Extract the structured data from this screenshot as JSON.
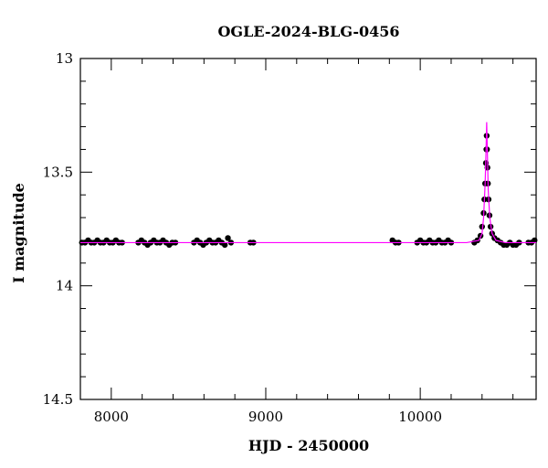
{
  "chart_data": {
    "type": "scatter",
    "title": "OGLE-2024-BLG-0456",
    "xlabel": "HJD - 2450000",
    "ylabel": "I magnitude",
    "xlim": [
      7800,
      10750
    ],
    "ylim": [
      14.5,
      13.0
    ],
    "y_inverted": true,
    "grid": false,
    "x_ticks": [
      8000,
      9000,
      10000
    ],
    "x_tick_labels": [
      "8000",
      "9000",
      "10000"
    ],
    "y_ticks": [
      13.0,
      13.5,
      14.0,
      14.5
    ],
    "y_tick_labels": [
      "13",
      "13.5",
      "14",
      "14.5"
    ],
    "series": [
      {
        "kind": "points",
        "color": "#000000",
        "points": [
          [
            7810,
            13.81
          ],
          [
            7830,
            13.81
          ],
          [
            7850,
            13.8
          ],
          [
            7870,
            13.81
          ],
          [
            7890,
            13.81
          ],
          [
            7910,
            13.8
          ],
          [
            7930,
            13.81
          ],
          [
            7950,
            13.81
          ],
          [
            7970,
            13.8
          ],
          [
            7990,
            13.81
          ],
          [
            8010,
            13.81
          ],
          [
            8030,
            13.8
          ],
          [
            8050,
            13.81
          ],
          [
            8070,
            13.81
          ],
          [
            8175,
            13.81
          ],
          [
            8195,
            13.8
          ],
          [
            8215,
            13.81
          ],
          [
            8235,
            13.82
          ],
          [
            8255,
            13.81
          ],
          [
            8275,
            13.8
          ],
          [
            8295,
            13.81
          ],
          [
            8315,
            13.81
          ],
          [
            8335,
            13.8
          ],
          [
            8355,
            13.81
          ],
          [
            8375,
            13.82
          ],
          [
            8395,
            13.81
          ],
          [
            8415,
            13.81
          ],
          [
            8535,
            13.81
          ],
          [
            8555,
            13.8
          ],
          [
            8575,
            13.81
          ],
          [
            8595,
            13.82
          ],
          [
            8615,
            13.81
          ],
          [
            8635,
            13.8
          ],
          [
            8655,
            13.81
          ],
          [
            8675,
            13.81
          ],
          [
            8695,
            13.8
          ],
          [
            8715,
            13.81
          ],
          [
            8735,
            13.82
          ],
          [
            8755,
            13.79
          ],
          [
            8775,
            13.81
          ],
          [
            8900,
            13.81
          ],
          [
            8920,
            13.81
          ],
          [
            9820,
            13.8
          ],
          [
            9840,
            13.81
          ],
          [
            9860,
            13.81
          ],
          [
            9980,
            13.81
          ],
          [
            10000,
            13.8
          ],
          [
            10020,
            13.81
          ],
          [
            10040,
            13.81
          ],
          [
            10060,
            13.8
          ],
          [
            10080,
            13.81
          ],
          [
            10100,
            13.81
          ],
          [
            10120,
            13.8
          ],
          [
            10140,
            13.81
          ],
          [
            10160,
            13.81
          ],
          [
            10180,
            13.8
          ],
          [
            10200,
            13.81
          ],
          [
            10350,
            13.81
          ],
          [
            10370,
            13.8
          ],
          [
            10390,
            13.78
          ],
          [
            10400,
            13.74
          ],
          [
            10410,
            13.68
          ],
          [
            10415,
            13.62
          ],
          [
            10420,
            13.55
          ],
          [
            10425,
            13.46
          ],
          [
            10428,
            13.4
          ],
          [
            10430,
            13.34
          ],
          [
            10432,
            13.4
          ],
          [
            10435,
            13.48
          ],
          [
            10438,
            13.55
          ],
          [
            10442,
            13.62
          ],
          [
            10448,
            13.69
          ],
          [
            10455,
            13.74
          ],
          [
            10465,
            13.77
          ],
          [
            10480,
            13.79
          ],
          [
            10500,
            13.8
          ],
          [
            10520,
            13.81
          ],
          [
            10540,
            13.82
          ],
          [
            10560,
            13.82
          ],
          [
            10580,
            13.81
          ],
          [
            10600,
            13.82
          ],
          [
            10620,
            13.82
          ],
          [
            10640,
            13.81
          ],
          [
            10700,
            13.81
          ],
          [
            10720,
            13.81
          ],
          [
            10740,
            13.8
          ]
        ]
      },
      {
        "kind": "model-line",
        "color": "#ff00ff",
        "points": [
          [
            7800,
            13.81
          ],
          [
            10300,
            13.81
          ],
          [
            10380,
            13.8
          ],
          [
            10400,
            13.77
          ],
          [
            10410,
            13.7
          ],
          [
            10420,
            13.55
          ],
          [
            10426,
            13.4
          ],
          [
            10430,
            13.28
          ],
          [
            10434,
            13.4
          ],
          [
            10440,
            13.58
          ],
          [
            10450,
            13.7
          ],
          [
            10465,
            13.77
          ],
          [
            10490,
            13.8
          ],
          [
            10550,
            13.81
          ],
          [
            10750,
            13.81
          ]
        ]
      }
    ]
  }
}
